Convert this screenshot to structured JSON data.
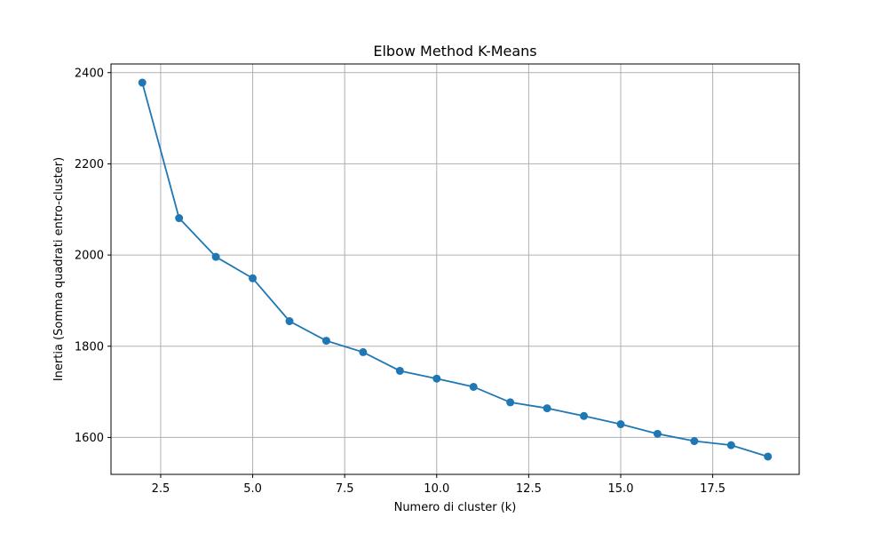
{
  "chart_data": {
    "type": "line",
    "title": "Elbow Method K-Means",
    "xlabel": "Numero di cluster (k)",
    "ylabel": "Inertia (Somma quadrati entro-cluster)",
    "xlim": [
      1.15,
      19.85
    ],
    "ylim": [
      1519,
      2419
    ],
    "xticks": [
      2.5,
      5.0,
      7.5,
      10.0,
      12.5,
      15.0,
      17.5
    ],
    "xtick_labels": [
      "2.5",
      "5.0",
      "7.5",
      "10.0",
      "12.5",
      "15.0",
      "17.5"
    ],
    "yticks": [
      1600,
      1800,
      2000,
      2200,
      2400
    ],
    "ytick_labels": [
      "1600",
      "1800",
      "2000",
      "2200",
      "2400"
    ],
    "grid": true,
    "marker": "circle",
    "series": [
      {
        "color": "#1f77b4",
        "x": [
          2,
          3,
          4,
          5,
          6,
          7,
          8,
          9,
          10,
          11,
          12,
          13,
          14,
          15,
          16,
          17,
          18,
          19
        ],
        "y": [
          2378,
          2081,
          1996,
          1949,
          1855,
          1812,
          1787,
          1746,
          1729,
          1711,
          1677,
          1664,
          1647,
          1629,
          1608,
          1592,
          1583,
          1558
        ]
      }
    ]
  }
}
